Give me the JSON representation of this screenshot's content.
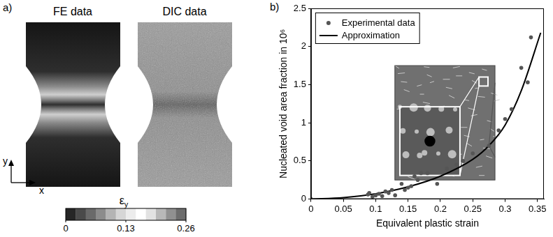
{
  "panel_a": {
    "label": "a)",
    "images": [
      {
        "title": "FE data"
      },
      {
        "title": "DIC data"
      }
    ],
    "axis_labels": {
      "x": "x",
      "y": "y"
    },
    "colorbar": {
      "symbol": "ε",
      "subscript": "y",
      "range": [
        0,
        0.26
      ],
      "ticks": [
        0,
        0.13,
        0.26
      ]
    }
  },
  "chart_data": {
    "type": "scatter",
    "panel_label": "b)",
    "x_label": "Equivalent plastic strain",
    "y_label": "Nucleated void area fraction in 10⁶",
    "xlim": [
      0,
      0.36
    ],
    "xticks": [
      0,
      0.05,
      0.1,
      0.15,
      0.2,
      0.25,
      0.3,
      0.35
    ],
    "ylim": [
      0,
      2.5
    ],
    "yticks": [
      0,
      0.5,
      1,
      1.5,
      2,
      2.5
    ],
    "grid": false,
    "legend": "upper left",
    "series": [
      {
        "name": "Experimental data",
        "type": "scatter",
        "color": "#555555",
        "marker": "circle",
        "x": [
          0,
          0.088,
          0.09,
          0.095,
          0.1,
          0.105,
          0.11,
          0.115,
          0.12,
          0.125,
          0.13,
          0.14,
          0.145,
          0.15,
          0.155,
          0.16,
          0.165,
          0.17,
          0.18,
          0.195,
          0.21,
          0.225,
          0.235,
          0.25,
          0.275,
          0.29,
          0.3,
          0.31,
          0.325,
          0.335,
          0.34
        ],
        "values": [
          0,
          0.06,
          0.08,
          0.03,
          0.05,
          0.07,
          0.04,
          0.1,
          0.08,
          0.12,
          0.05,
          0.2,
          0.12,
          0.15,
          0.17,
          0.3,
          0.25,
          0.34,
          0.34,
          0.2,
          0.4,
          0.45,
          0.5,
          0.6,
          0.7,
          0.9,
          1.05,
          1.18,
          1.72,
          1.53,
          2.12
        ]
      },
      {
        "name": "Approximation",
        "type": "line",
        "color": "#000000",
        "line_style": "solid",
        "x": [
          0,
          0.05,
          0.1,
          0.15,
          0.2,
          0.25,
          0.275,
          0.3,
          0.325,
          0.355
        ],
        "values": [
          0,
          0.02,
          0.07,
          0.16,
          0.3,
          0.52,
          0.7,
          0.97,
          1.42,
          2.18
        ]
      }
    ]
  }
}
